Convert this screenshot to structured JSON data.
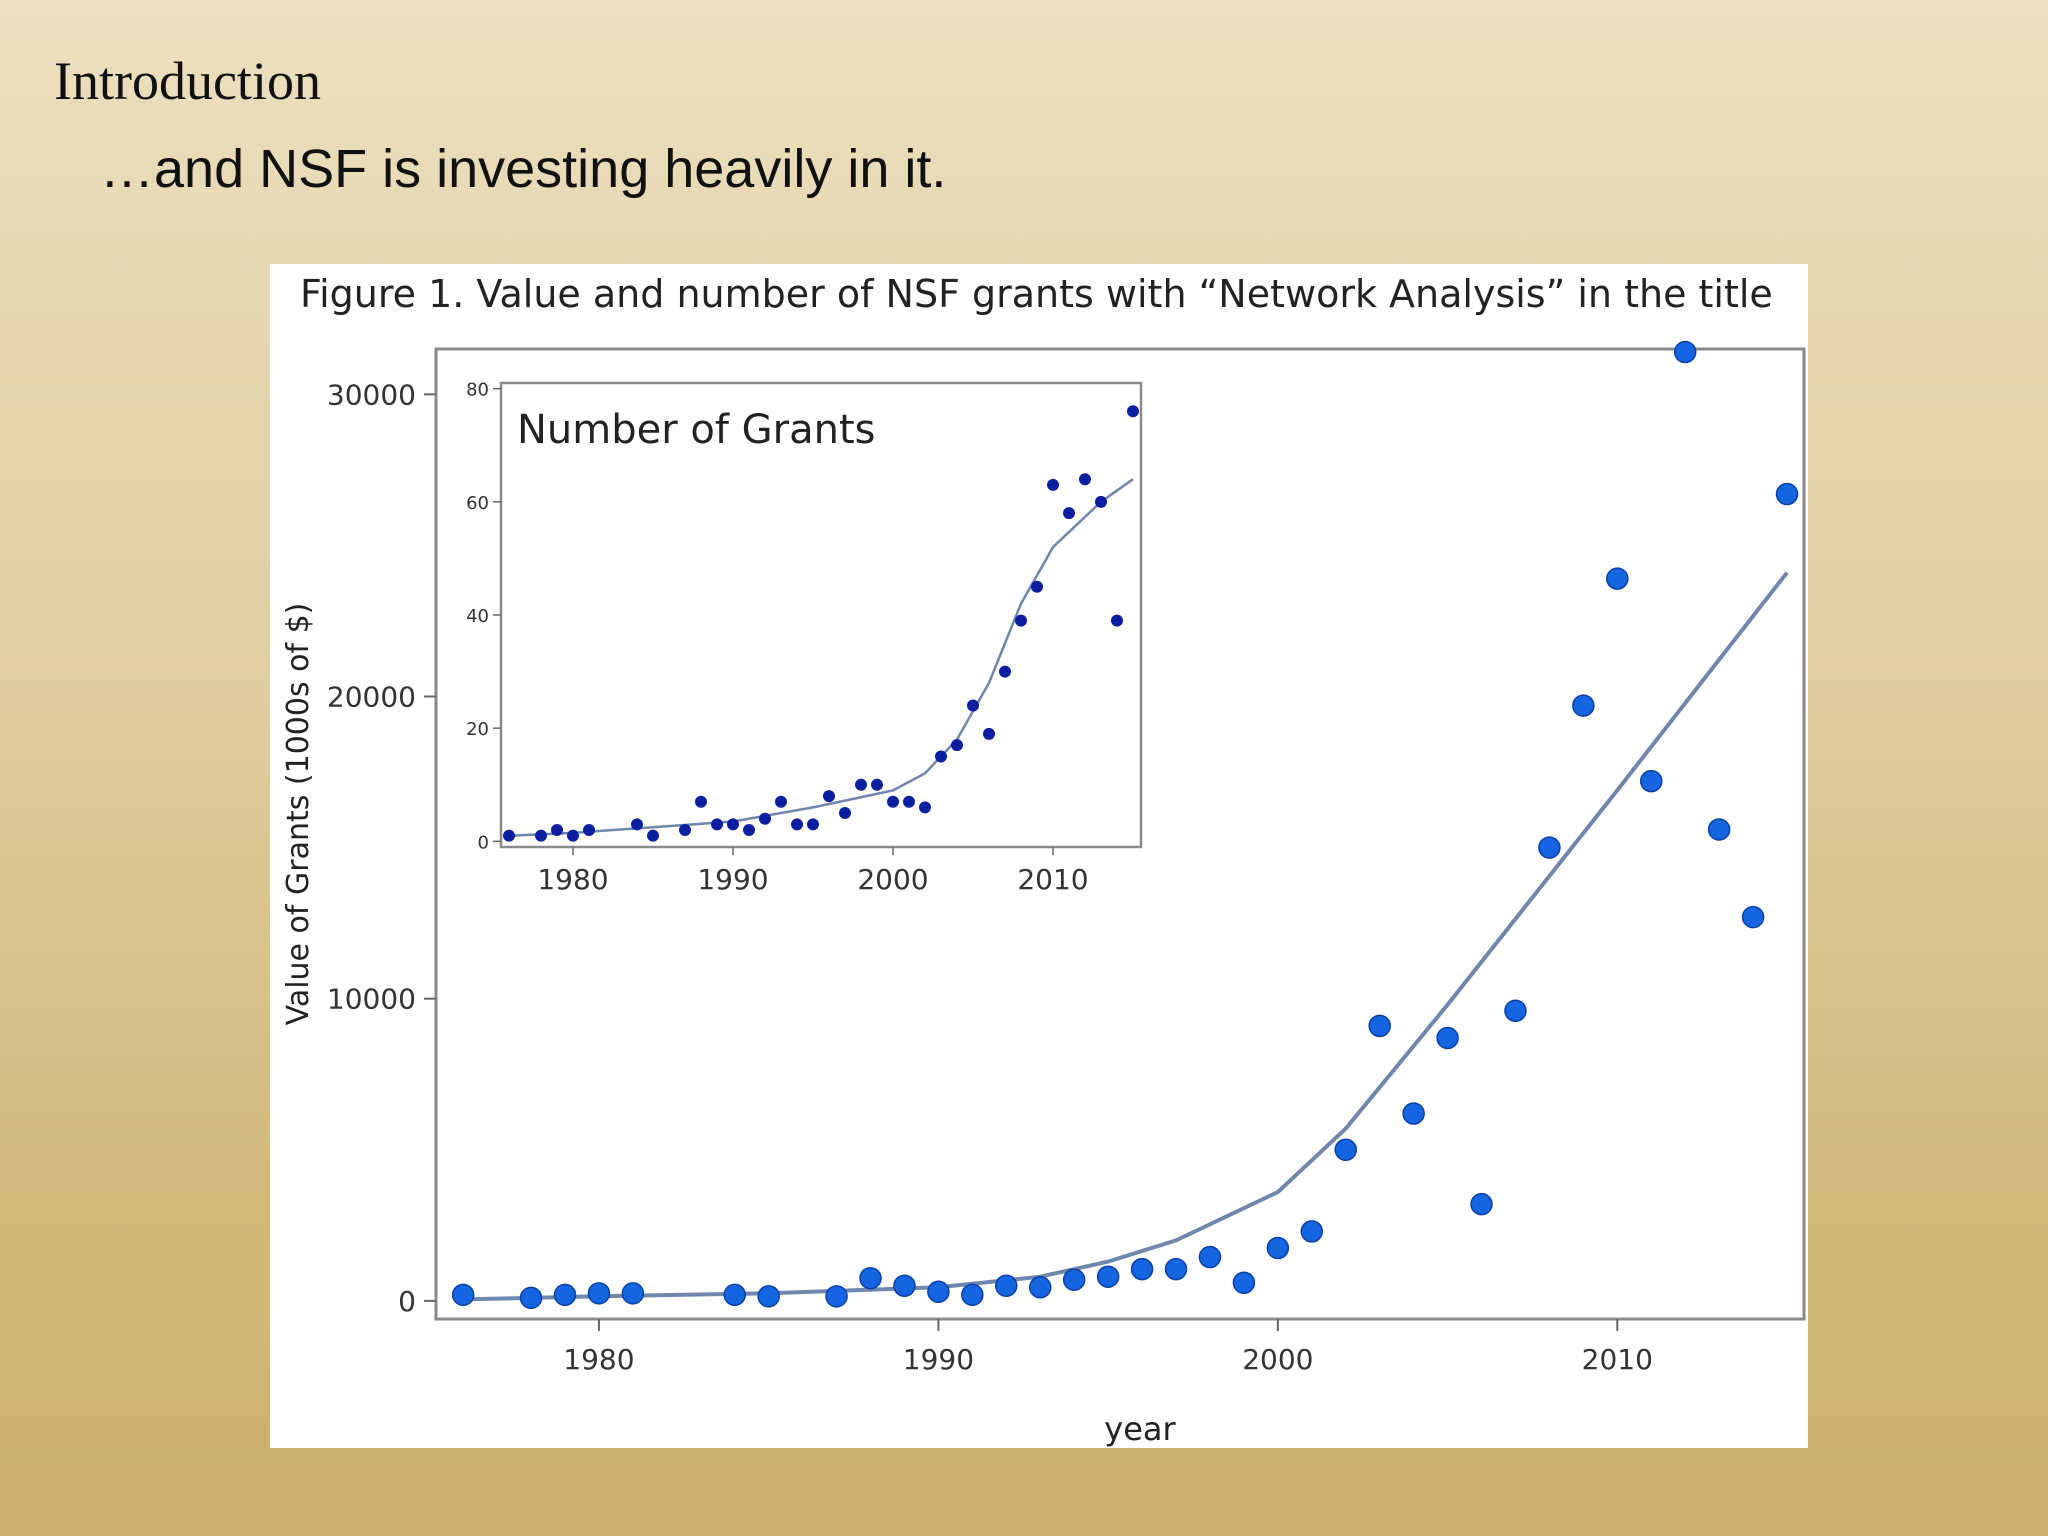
{
  "slide": {
    "heading": "Introduction",
    "subheading": "…and NSF is investing heavily in it."
  },
  "colors": {
    "point": "#1565e0",
    "point_stroke": "#0a3fa6",
    "inset_point": "#0b1fa0",
    "trend": "#6f86ad",
    "frame": "#8a8a8a"
  },
  "chart_data": [
    {
      "type": "scatter",
      "title": "Figure 1.  Value and number of NSF grants with “Network Analysis” in the title",
      "xlabel": "year",
      "ylabel": "Value of Grants  (1000s of $)",
      "xlim": [
        1975.2,
        2015.5
      ],
      "ylim": [
        -600,
        31500
      ],
      "xticks": [
        1980,
        1990,
        2000,
        2010
      ],
      "yticks": [
        0,
        10000,
        20000,
        30000
      ],
      "grid": false,
      "points": [
        {
          "x": 1976,
          "y": 200
        },
        {
          "x": 1978,
          "y": 100
        },
        {
          "x": 1979,
          "y": 200
        },
        {
          "x": 1980,
          "y": 250
        },
        {
          "x": 1981,
          "y": 250
        },
        {
          "x": 1984,
          "y": 200
        },
        {
          "x": 1985,
          "y": 150
        },
        {
          "x": 1987,
          "y": 150
        },
        {
          "x": 1988,
          "y": 750
        },
        {
          "x": 1989,
          "y": 500
        },
        {
          "x": 1990,
          "y": 300
        },
        {
          "x": 1991,
          "y": 200
        },
        {
          "x": 1992,
          "y": 500
        },
        {
          "x": 1993,
          "y": 450
        },
        {
          "x": 1994,
          "y": 700
        },
        {
          "x": 1995,
          "y": 800
        },
        {
          "x": 1996,
          "y": 1050
        },
        {
          "x": 1997,
          "y": 1050
        },
        {
          "x": 1998,
          "y": 1450
        },
        {
          "x": 1999,
          "y": 600
        },
        {
          "x": 2000,
          "y": 1750
        },
        {
          "x": 2001,
          "y": 2300
        },
        {
          "x": 2002,
          "y": 5000
        },
        {
          "x": 2003,
          "y": 9100
        },
        {
          "x": 2004,
          "y": 6200
        },
        {
          "x": 2005,
          "y": 8700
        },
        {
          "x": 2006,
          "y": 3200
        },
        {
          "x": 2007,
          "y": 9600
        },
        {
          "x": 2008,
          "y": 15000
        },
        {
          "x": 2009,
          "y": 19700
        },
        {
          "x": 2010,
          "y": 23900
        },
        {
          "x": 2011,
          "y": 17200
        },
        {
          "x": 2012,
          "y": 31400
        },
        {
          "x": 2013,
          "y": 15600
        },
        {
          "x": 2014,
          "y": 12700
        },
        {
          "x": 2015,
          "y": 26700
        }
      ],
      "trend": [
        {
          "x": 1976,
          "y": 50
        },
        {
          "x": 1980,
          "y": 150
        },
        {
          "x": 1985,
          "y": 250
        },
        {
          "x": 1990,
          "y": 450
        },
        {
          "x": 1993,
          "y": 800
        },
        {
          "x": 1995,
          "y": 1300
        },
        {
          "x": 1997,
          "y": 2000
        },
        {
          "x": 2000,
          "y": 3600
        },
        {
          "x": 2002,
          "y": 5700
        },
        {
          "x": 2005,
          "y": 9800
        },
        {
          "x": 2010,
          "y": 16900
        },
        {
          "x": 2015,
          "y": 24100
        }
      ],
      "inset": {
        "title": "Number of Grants",
        "xlim": [
          1975.5,
          2015.5
        ],
        "ylim": [
          -1,
          81
        ],
        "xticks": [
          1980,
          1990,
          2000,
          2010
        ],
        "yticks": [
          0,
          20,
          40,
          60,
          80
        ],
        "points": [
          {
            "x": 1976,
            "y": 1
          },
          {
            "x": 1978,
            "y": 1
          },
          {
            "x": 1979,
            "y": 2
          },
          {
            "x": 1980,
            "y": 1
          },
          {
            "x": 1981,
            "y": 2
          },
          {
            "x": 1984,
            "y": 3
          },
          {
            "x": 1985,
            "y": 1
          },
          {
            "x": 1987,
            "y": 2
          },
          {
            "x": 1988,
            "y": 7
          },
          {
            "x": 1989,
            "y": 3
          },
          {
            "x": 1990,
            "y": 3
          },
          {
            "x": 1991,
            "y": 2
          },
          {
            "x": 1992,
            "y": 4
          },
          {
            "x": 1993,
            "y": 7
          },
          {
            "x": 1994,
            "y": 3
          },
          {
            "x": 1995,
            "y": 3
          },
          {
            "x": 1996,
            "y": 8
          },
          {
            "x": 1997,
            "y": 5
          },
          {
            "x": 1998,
            "y": 10
          },
          {
            "x": 1999,
            "y": 10
          },
          {
            "x": 2000,
            "y": 7
          },
          {
            "x": 2001,
            "y": 7
          },
          {
            "x": 2002,
            "y": 6
          },
          {
            "x": 2003,
            "y": 15
          },
          {
            "x": 2004,
            "y": 17
          },
          {
            "x": 2005,
            "y": 24
          },
          {
            "x": 2006,
            "y": 19
          },
          {
            "x": 2007,
            "y": 30
          },
          {
            "x": 2008,
            "y": 39
          },
          {
            "x": 2009,
            "y": 45
          },
          {
            "x": 2010,
            "y": 63
          },
          {
            "x": 2011,
            "y": 58
          },
          {
            "x": 2012,
            "y": 64
          },
          {
            "x": 2013,
            "y": 60
          },
          {
            "x": 2014,
            "y": 39
          },
          {
            "x": 2015,
            "y": 76
          }
        ],
        "trend": [
          {
            "x": 1976,
            "y": 1
          },
          {
            "x": 1980,
            "y": 1.5
          },
          {
            "x": 1985,
            "y": 2.5
          },
          {
            "x": 1990,
            "y": 3.5
          },
          {
            "x": 1995,
            "y": 6
          },
          {
            "x": 2000,
            "y": 9
          },
          {
            "x": 2002,
            "y": 12
          },
          {
            "x": 2004,
            "y": 18
          },
          {
            "x": 2006,
            "y": 28
          },
          {
            "x": 2008,
            "y": 42
          },
          {
            "x": 2010,
            "y": 52
          },
          {
            "x": 2013,
            "y": 60
          },
          {
            "x": 2015,
            "y": 64
          }
        ]
      }
    }
  ]
}
